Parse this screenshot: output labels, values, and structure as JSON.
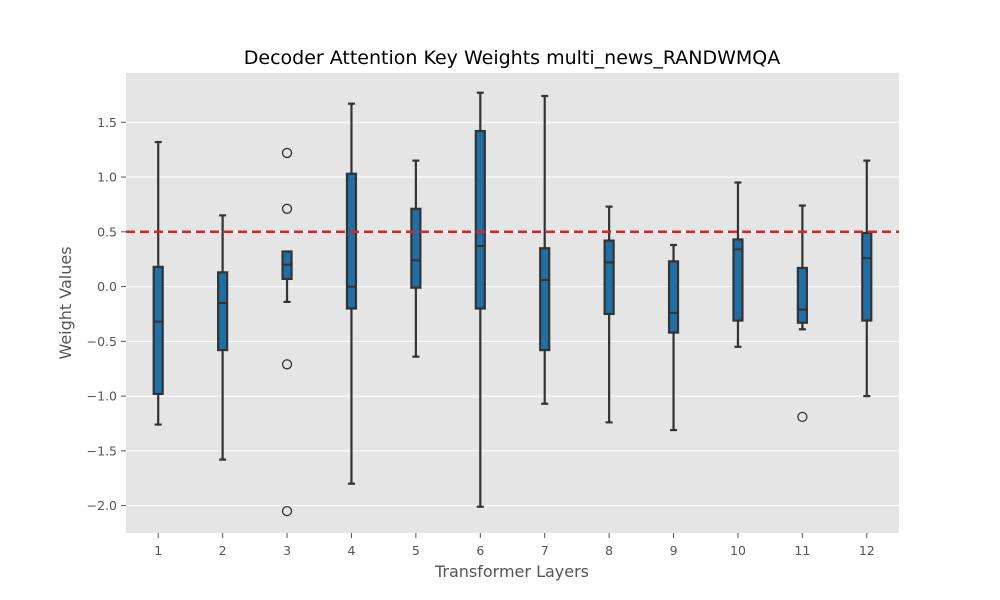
{
  "chart_data": {
    "type": "box",
    "title": "Decoder Attention Key Weights multi_news_RANDWMQA",
    "xlabel": "Transformer Layers",
    "ylabel": "Weight Values",
    "ylim": [
      -2.25,
      1.95
    ],
    "yticks": [
      -2.0,
      -1.5,
      -1.0,
      -0.5,
      0.0,
      0.5,
      1.0,
      1.5
    ],
    "ytick_labels": [
      "−2.0",
      "−1.5",
      "−1.0",
      "−0.5",
      "0.0",
      "0.5",
      "1.0",
      "1.5"
    ],
    "categories": [
      "1",
      "2",
      "3",
      "4",
      "5",
      "6",
      "7",
      "8",
      "9",
      "10",
      "11",
      "12"
    ],
    "boxes": [
      {
        "layer": "1",
        "whisker_low": -1.26,
        "q1": -0.98,
        "median": -0.32,
        "q3": 0.18,
        "whisker_high": 1.32,
        "outliers": []
      },
      {
        "layer": "2",
        "whisker_low": -1.58,
        "q1": -0.58,
        "median": -0.15,
        "q3": 0.13,
        "whisker_high": 0.65,
        "outliers": []
      },
      {
        "layer": "3",
        "whisker_low": -0.14,
        "q1": 0.07,
        "median": 0.2,
        "q3": 0.32,
        "whisker_high": 0.32,
        "outliers": [
          1.22,
          0.71,
          -0.71,
          -2.05
        ]
      },
      {
        "layer": "4",
        "whisker_low": -1.8,
        "q1": -0.2,
        "median": 0.0,
        "q3": 1.03,
        "whisker_high": 1.67,
        "outliers": []
      },
      {
        "layer": "5",
        "whisker_low": -0.64,
        "q1": -0.01,
        "median": 0.24,
        "q3": 0.71,
        "whisker_high": 1.15,
        "outliers": []
      },
      {
        "layer": "6",
        "whisker_low": -2.01,
        "q1": -0.2,
        "median": 0.37,
        "q3": 1.42,
        "whisker_high": 1.77,
        "outliers": []
      },
      {
        "layer": "7",
        "whisker_low": -1.07,
        "q1": -0.58,
        "median": 0.06,
        "q3": 0.35,
        "whisker_high": 1.74,
        "outliers": []
      },
      {
        "layer": "8",
        "whisker_low": -1.24,
        "q1": -0.25,
        "median": 0.22,
        "q3": 0.42,
        "whisker_high": 0.73,
        "outliers": []
      },
      {
        "layer": "9",
        "whisker_low": -1.31,
        "q1": -0.42,
        "median": -0.24,
        "q3": 0.23,
        "whisker_high": 0.38,
        "outliers": []
      },
      {
        "layer": "10",
        "whisker_low": -0.55,
        "q1": -0.31,
        "median": 0.34,
        "q3": 0.43,
        "whisker_high": 0.95,
        "outliers": []
      },
      {
        "layer": "11",
        "whisker_low": -0.39,
        "q1": -0.33,
        "median": -0.21,
        "q3": 0.17,
        "whisker_high": 0.74,
        "outliers": [
          -1.19
        ]
      },
      {
        "layer": "12",
        "whisker_low": -1.0,
        "q1": -0.31,
        "median": 0.26,
        "q3": 0.49,
        "whisker_high": 1.15,
        "outliers": []
      }
    ],
    "reference_line": {
      "y": 0.5,
      "style": "dashed",
      "color": "#d62728"
    },
    "grid": true,
    "colors": {
      "background": "#e5e5e5",
      "grid": "#ffffff",
      "box_fill": "#1f6fa4",
      "box_edge": "#333333",
      "whisker": "#333333"
    }
  }
}
